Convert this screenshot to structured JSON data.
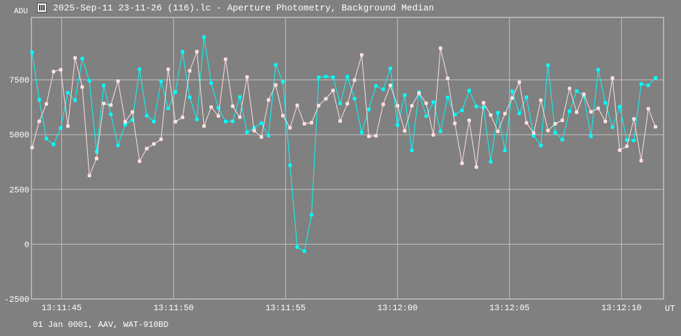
{
  "window": {
    "title": "2025-Sep-11 23-11-26 (116).lc - Aperture Photometry, Background Median",
    "app_icon": "lightcurve-icon"
  },
  "footer": "01 Jan 0001, AAV, WAT-910BD",
  "colors": {
    "background": "#808080",
    "grid": "#c0c0c0",
    "series1": "#00ffff",
    "series2": "#ffe0e0",
    "text": "#ffffff"
  },
  "chart_data": {
    "type": "line",
    "title": "",
    "xlabel": "UT",
    "ylabel": "ADU",
    "ylim": [
      -2500,
      10350
    ],
    "xlim": [
      "13:11:43.65",
      "13:12:11.88"
    ],
    "grid": true,
    "y_ticks": [
      -2500,
      0,
      2500,
      5000,
      7500
    ],
    "y_tick_labels": [
      "-2500",
      "0",
      "2500",
      "5000",
      "7500"
    ],
    "x_ticks": [
      "13:11:45",
      "13:11:50",
      "13:11:55",
      "13:12:00",
      "13:12:05",
      "13:12:10"
    ],
    "x": [
      "13:11:43.68",
      "13:11:44.00",
      "13:11:44.32",
      "13:11:44.64",
      "13:11:44.96",
      "13:11:45.28",
      "13:11:45.60",
      "13:11:45.92",
      "13:11:46.24",
      "13:11:46.56",
      "13:11:46.88",
      "13:11:47.20",
      "13:11:47.52",
      "13:11:47.84",
      "13:11:48.16",
      "13:11:48.48",
      "13:11:48.80",
      "13:11:49.12",
      "13:11:49.44",
      "13:11:49.76",
      "13:11:50.08",
      "13:11:50.40",
      "13:11:50.72",
      "13:11:51.04",
      "13:11:51.36",
      "13:11:51.68",
      "13:11:52.00",
      "13:11:52.32",
      "13:11:52.64",
      "13:11:52.96",
      "13:11:53.28",
      "13:11:53.60",
      "13:11:53.92",
      "13:11:54.24",
      "13:11:54.56",
      "13:11:54.88",
      "13:11:55.20",
      "13:11:55.52",
      "13:11:55.84",
      "13:11:56.16",
      "13:11:56.48",
      "13:11:56.80",
      "13:11:57.12",
      "13:11:57.44",
      "13:11:57.76",
      "13:11:58.08",
      "13:11:58.40",
      "13:11:58.72",
      "13:11:59.04",
      "13:11:59.36",
      "13:11:59.68",
      "13:12:00.00",
      "13:12:00.32",
      "13:12:00.64",
      "13:12:00.96",
      "13:12:01.28",
      "13:12:01.60",
      "13:12:01.92",
      "13:12:02.24",
      "13:12:02.56",
      "13:12:02.88",
      "13:12:03.20",
      "13:12:03.52",
      "13:12:03.84",
      "13:12:04.16",
      "13:12:04.48",
      "13:12:04.80",
      "13:12:05.12",
      "13:12:05.44",
      "13:12:05.76",
      "13:12:06.08",
      "13:12:06.40",
      "13:12:06.72",
      "13:12:07.04",
      "13:12:07.36",
      "13:12:07.68",
      "13:12:08.00",
      "13:12:08.32",
      "13:12:08.64",
      "13:12:08.96",
      "13:12:09.28",
      "13:12:09.60",
      "13:12:09.92",
      "13:12:10.24",
      "13:12:10.56",
      "13:12:10.88",
      "13:12:11.20",
      "13:12:11.52"
    ],
    "series": [
      {
        "color": "#00ffff",
        "values": [
          8757,
          6593,
          4820,
          4557,
          5307,
          6910,
          6573,
          8472,
          7460,
          4219,
          7248,
          5928,
          4516,
          5466,
          5665,
          7986,
          5865,
          5602,
          7438,
          6203,
          6941,
          8789,
          6710,
          5697,
          9454,
          7353,
          6225,
          5602,
          5612,
          6720,
          5110,
          5307,
          5528,
          4958,
          8187,
          7417,
          3608,
          -127,
          -317,
          1339,
          7617,
          7649,
          7617,
          6425,
          7649,
          6647,
          5107,
          6161,
          7227,
          7069,
          8029,
          5434,
          6805,
          4283,
          6941,
          5845,
          6488,
          5150,
          6700,
          5918,
          6108,
          7016,
          6288,
          6245,
          3766,
          6003,
          4283,
          6985,
          5971,
          6710,
          4960,
          4504,
          8166,
          5096,
          4770,
          6066,
          6995,
          6784,
          4928,
          7966,
          6457,
          5339,
          6276,
          4758,
          4738,
          7311,
          7248,
          7596
        ]
      },
      {
        "color": "#ffe0e0",
        "values": [
          4410,
          5612,
          6403,
          7881,
          7966,
          5391,
          8504,
          7175,
          3133,
          3915,
          6425,
          6352,
          7449,
          5591,
          6035,
          3788,
          4368,
          4579,
          4790,
          7986,
          5591,
          5792,
          7913,
          8789,
          5391,
          6257,
          5855,
          8441,
          6298,
          5802,
          7630,
          5181,
          4896,
          6583,
          7269,
          5865,
          5317,
          6340,
          5497,
          5549,
          6330,
          6636,
          7016,
          5623,
          6414,
          7491,
          8640,
          4928,
          4949,
          6383,
          7248,
          6319,
          5170,
          6319,
          6890,
          6435,
          4991,
          8947,
          7565,
          5517,
          3693,
          5654,
          3523,
          6457,
          5897,
          5150,
          5960,
          6668,
          7396,
          5539,
          5074,
          6573,
          5191,
          5497,
          5654,
          7111,
          6023,
          6847,
          6045,
          6203,
          5602,
          7586,
          4294,
          4473,
          5718,
          3819,
          6182,
          5359
        ]
      }
    ]
  }
}
